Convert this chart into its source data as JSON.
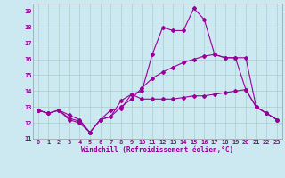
{
  "xlabel": "Windchill (Refroidissement éolien,°C)",
  "bg_color": "#cce8f0",
  "grid_color": "#aacccc",
  "line_color": "#990099",
  "xlim": [
    -0.5,
    23.5
  ],
  "ylim": [
    11,
    19.5
  ],
  "xticks": [
    0,
    1,
    2,
    3,
    4,
    5,
    6,
    7,
    8,
    9,
    10,
    11,
    12,
    13,
    14,
    15,
    16,
    17,
    18,
    19,
    20,
    21,
    22,
    23
  ],
  "yticks": [
    11,
    12,
    13,
    14,
    15,
    16,
    17,
    18,
    19
  ],
  "line1_x": [
    0,
    1,
    2,
    3,
    4,
    5,
    6,
    7,
    8,
    9,
    10,
    11,
    12,
    13,
    14,
    15,
    16,
    17,
    18,
    19,
    20,
    21,
    22,
    23
  ],
  "line1_y": [
    12.8,
    12.6,
    12.8,
    12.2,
    12.0,
    11.4,
    12.2,
    12.8,
    12.9,
    13.8,
    13.5,
    13.5,
    13.5,
    13.5,
    13.6,
    13.7,
    13.7,
    13.8,
    13.9,
    14.0,
    14.1,
    13.0,
    12.6,
    12.2
  ],
  "line2_x": [
    0,
    1,
    2,
    3,
    4,
    5,
    6,
    7,
    8,
    9,
    10,
    11,
    12,
    13,
    14,
    15,
    16,
    17,
    18,
    19,
    20,
    21,
    22,
    23
  ],
  "line2_y": [
    12.8,
    12.6,
    12.8,
    12.3,
    12.1,
    11.4,
    12.2,
    12.4,
    13.4,
    13.8,
    14.0,
    16.3,
    18.0,
    17.8,
    17.8,
    19.2,
    18.5,
    16.3,
    16.1,
    16.1,
    14.1,
    13.0,
    12.6,
    12.2
  ],
  "line3_x": [
    0,
    1,
    2,
    3,
    4,
    5,
    6,
    7,
    8,
    9,
    10,
    11,
    12,
    13,
    14,
    15,
    16,
    17,
    18,
    19,
    20,
    21,
    22,
    23
  ],
  "line3_y": [
    12.8,
    12.6,
    12.8,
    12.5,
    12.2,
    11.4,
    12.2,
    12.4,
    13.0,
    13.5,
    14.2,
    14.8,
    15.2,
    15.5,
    15.8,
    16.0,
    16.2,
    16.3,
    16.1,
    16.1,
    16.1,
    13.0,
    12.6,
    12.2
  ]
}
